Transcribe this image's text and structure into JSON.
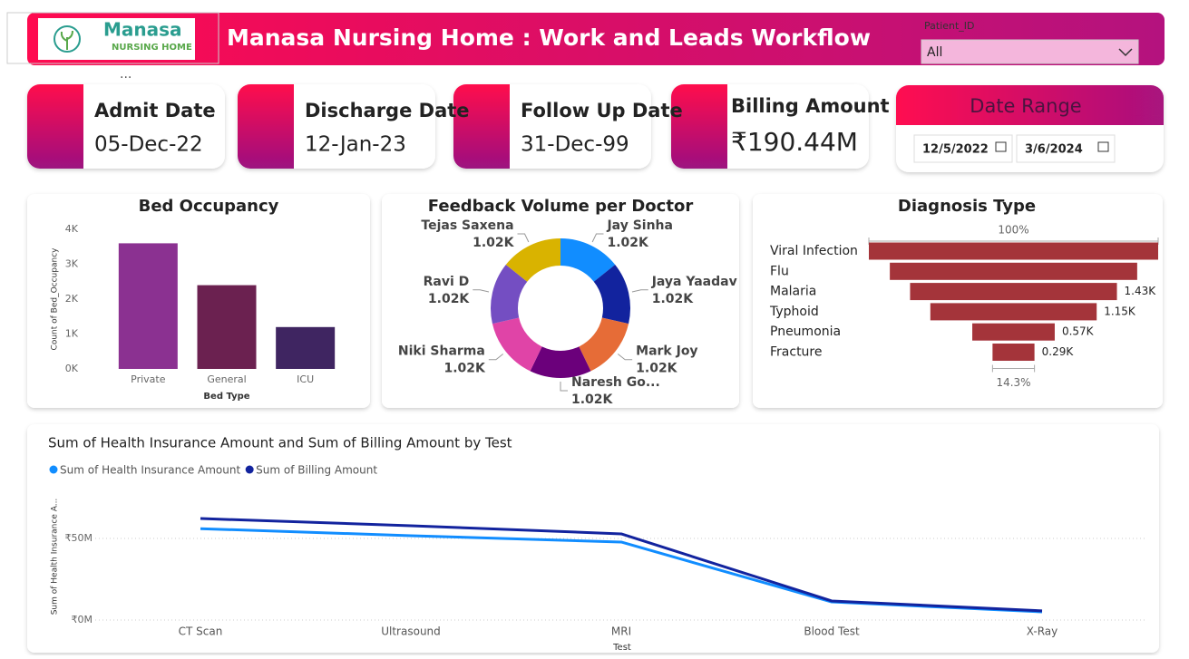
{
  "header": {
    "title": "Manasa Nursing Home : Work and Leads Workflow",
    "logo_name": "Manasa",
    "logo_sub": "NURSING HOME"
  },
  "slicer": {
    "label": "Patient_ID",
    "value": "All"
  },
  "cards": [
    {
      "label": "Admit Date",
      "value": "05-Dec-22"
    },
    {
      "label": "Discharge Date",
      "value": "12-Jan-23"
    },
    {
      "label": "Follow Up Date",
      "value": "31-Dec-99"
    },
    {
      "label": "Billing Amount",
      "value": "₹190.44M"
    }
  ],
  "date_range": {
    "title": "Date Range",
    "start": "12/5/2022",
    "end": "3/6/2024"
  },
  "chart_data": [
    {
      "type": "bar",
      "title": "Bed Occupancy",
      "xlabel": "Bed Type",
      "ylabel": "Count of Bed_Occupancy",
      "categories": [
        "Private",
        "General",
        "ICU"
      ],
      "values": [
        3600,
        2400,
        1200
      ],
      "colors": [
        "#8b3191",
        "#6b2150",
        "#3f2561"
      ],
      "ylim": [
        0,
        4000
      ],
      "yticks": [
        {
          "value": 0,
          "label": "0K"
        },
        {
          "value": 1000,
          "label": "1K"
        },
        {
          "value": 2000,
          "label": "2K"
        },
        {
          "value": 3000,
          "label": "3K"
        },
        {
          "value": 4000,
          "label": "4K"
        }
      ]
    },
    {
      "type": "pie",
      "title": "Feedback Volume per Doctor",
      "donut": true,
      "categories": [
        "Jay Sinha",
        "Jaya Yaadav",
        "Mark Joy",
        "Naresh Go...",
        "Niki Sharma",
        "Ravi D",
        "Tejas Saxena"
      ],
      "values": [
        1020,
        1020,
        1020,
        1020,
        1020,
        1020,
        1020
      ],
      "value_labels": [
        "1.02K",
        "1.02K",
        "1.02K",
        "1.02K",
        "1.02K",
        "1.02K",
        "1.02K"
      ],
      "colors": [
        "#118dff",
        "#12239e",
        "#e66c37",
        "#6b007b",
        "#e044a7",
        "#744ec2",
        "#d9b300"
      ]
    },
    {
      "type": "funnel",
      "title": "Diagnosis Type",
      "top_label": "100%",
      "bottom_label": "14.3%",
      "categories": [
        "Viral Infection",
        "Flu",
        "Malaria",
        "Typhoid",
        "Pneumonia",
        "Fracture"
      ],
      "values": [
        2000,
        1710,
        1430,
        1150,
        570,
        290
      ],
      "value_labels": [
        null,
        null,
        "1.43K",
        "1.15K",
        "0.57K",
        "0.29K"
      ],
      "color": "#a4343a"
    },
    {
      "type": "line",
      "title": "Sum of Health Insurance Amount and Sum of Billing Amount by Test",
      "xlabel": "Test",
      "ylabel": "Sum of Health Insurance A...",
      "categories": [
        "CT Scan",
        "Ultrasound",
        "MRI",
        "Blood Test",
        "X-Ray"
      ],
      "series": [
        {
          "name": "Sum of Health Insurance Amount",
          "color": "#118dff",
          "values": [
            56,
            51.7,
            47.8,
            11.1,
            5
          ]
        },
        {
          "name": "Sum of Billing Amount",
          "color": "#12239e",
          "values": [
            62.2,
            57.8,
            52.8,
            11.7,
            5.6
          ]
        }
      ],
      "ylim": [
        0,
        75
      ],
      "yticks": [
        {
          "value": 0,
          "label": "₹0M"
        },
        {
          "value": 50,
          "label": "₹50M"
        }
      ],
      "grid": true
    }
  ]
}
